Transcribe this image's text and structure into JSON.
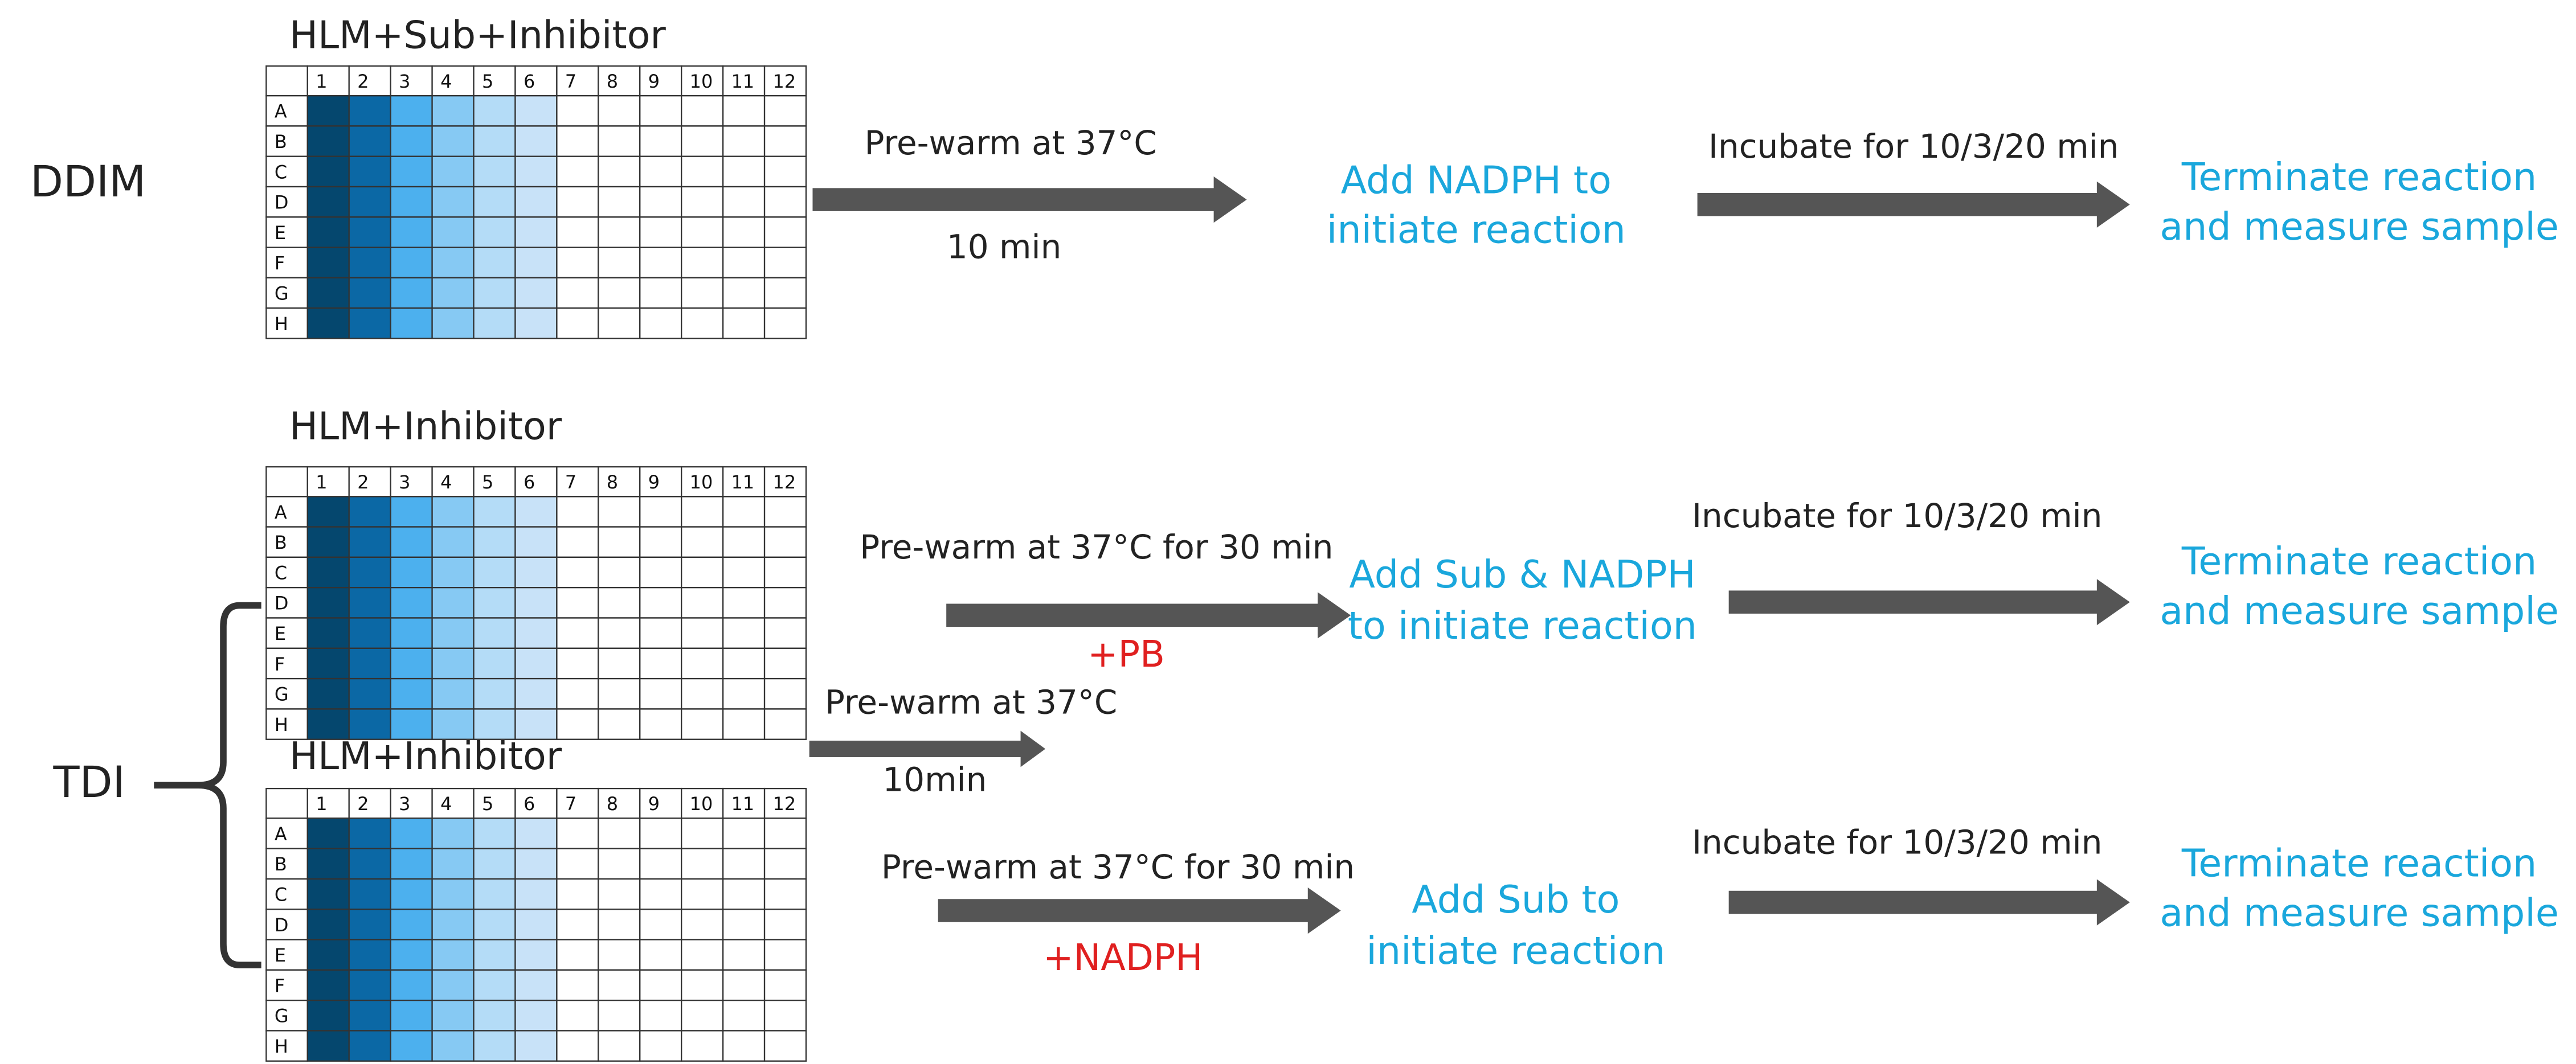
{
  "plate": {
    "columns": [
      "1",
      "2",
      "3",
      "4",
      "5",
      "6",
      "7",
      "8",
      "9",
      "10",
      "11",
      "12"
    ],
    "rows": [
      "A",
      "B",
      "C",
      "D",
      "E",
      "F",
      "G",
      "H"
    ]
  },
  "ddim": {
    "label": "DDIM",
    "plate_title": "HLM+Sub+Inhibitor",
    "prewarm": "Pre-warm at 37°C",
    "prewarm_time": "10 min",
    "add": [
      "Add NADPH to",
      "initiate reaction"
    ],
    "incubate": "Incubate for 10/3/20 min",
    "terminate": [
      "Terminate reaction",
      "and measure sample"
    ]
  },
  "tdi": {
    "label": "TDI",
    "plate_1_title": "HLM+Inhibitor",
    "plate_2_title": "HLM+Inhibitor",
    "prewarm": "Pre-warm at 37°C",
    "prewarm_time": "10min",
    "branch_1": {
      "prewarm": "Pre-warm at 37°C for 30 min",
      "additive": "+PB",
      "add": [
        "Add Sub & NADPH",
        "to initiate reaction"
      ],
      "incubate": "Incubate for 10/3/20 min",
      "terminate": [
        "Terminate reaction",
        "and measure sample"
      ]
    },
    "branch_2": {
      "prewarm": "Pre-warm at 37°C for 30 min",
      "additive": "+NADPH",
      "add": [
        "Add Sub to",
        "initiate reaction"
      ],
      "incubate": "Incubate for 10/3/20 min",
      "terminate": [
        "Terminate reaction",
        "and measure sample"
      ]
    }
  }
}
